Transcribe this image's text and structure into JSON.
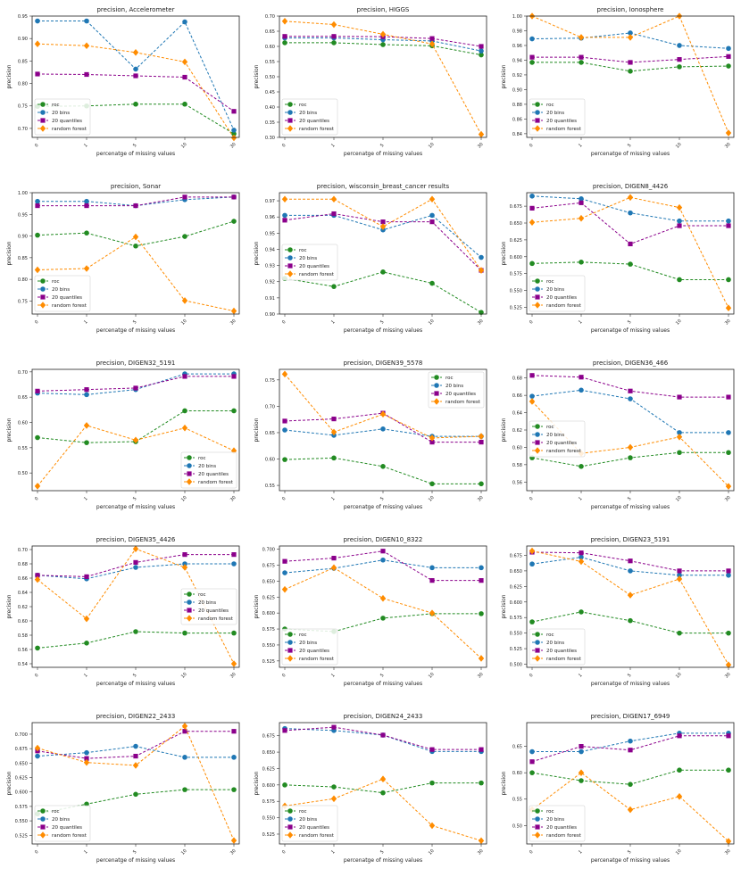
{
  "series_names": [
    "roc",
    "20 bins",
    "20 quantiles",
    "random forest"
  ],
  "colors": [
    "#228b22",
    "#1f77b4",
    "#8b008b",
    "#ff8c00"
  ],
  "markers": [
    "circle",
    "circle",
    "square",
    "diamond"
  ],
  "chart_data": [
    {
      "type": "line",
      "title": "precision, Accelerometer",
      "xlabel": "percenatge of missing values",
      "ylabel": "precision",
      "categories": [
        "0",
        "1",
        "5",
        "10",
        "30"
      ],
      "ylim": [
        0.68,
        0.95
      ],
      "yticks": [
        "0.70",
        "0.75",
        "0.80",
        "0.85",
        "0.90",
        "0.95"
      ],
      "legend": "lower-left",
      "series": [
        {
          "name": "roc",
          "values": [
            0.749,
            0.75,
            0.754,
            0.754,
            0.688
          ]
        },
        {
          "name": "20 bins",
          "values": [
            0.939,
            0.939,
            0.832,
            0.937,
            0.696
          ]
        },
        {
          "name": "20 quantiles",
          "values": [
            0.821,
            0.82,
            0.817,
            0.814,
            0.738
          ]
        },
        {
          "name": "random forest",
          "values": [
            0.888,
            0.884,
            0.869,
            0.848,
            0.679
          ]
        }
      ]
    },
    {
      "type": "line",
      "title": "precision, HIGGS",
      "xlabel": "percenatge of missing values",
      "ylabel": "precision",
      "categories": [
        "0",
        "1",
        "5",
        "10",
        "30"
      ],
      "ylim": [
        0.3,
        0.7
      ],
      "yticks": [
        "0.30",
        "0.35",
        "0.40",
        "0.45",
        "0.50",
        "0.55",
        "0.60",
        "0.65",
        "0.70"
      ],
      "legend": "lower-left",
      "series": [
        {
          "name": "roc",
          "values": [
            0.612,
            0.612,
            0.606,
            0.602,
            0.572
          ]
        },
        {
          "name": "20 bins",
          "values": [
            0.628,
            0.628,
            0.622,
            0.618,
            0.585
          ]
        },
        {
          "name": "20 quantiles",
          "values": [
            0.633,
            0.633,
            0.632,
            0.626,
            0.6
          ]
        },
        {
          "name": "random forest",
          "values": [
            0.683,
            0.672,
            0.64,
            0.608,
            0.31
          ]
        }
      ]
    },
    {
      "type": "line",
      "title": "precision, Ionosphere",
      "xlabel": "percenatge of missing values",
      "ylabel": "precision",
      "categories": [
        "0",
        "1",
        "5",
        "10",
        "30"
      ],
      "ylim": [
        0.835,
        1.0
      ],
      "yticks": [
        "0.84",
        "0.86",
        "0.88",
        "0.90",
        "0.92",
        "0.94",
        "0.96",
        "0.98",
        "1.00"
      ],
      "legend": "lower-left",
      "series": [
        {
          "name": "roc",
          "values": [
            0.937,
            0.937,
            0.925,
            0.931,
            0.932
          ]
        },
        {
          "name": "20 bins",
          "values": [
            0.969,
            0.97,
            0.977,
            0.96,
            0.956
          ]
        },
        {
          "name": "20 quantiles",
          "values": [
            0.944,
            0.944,
            0.937,
            0.941,
            0.945
          ]
        },
        {
          "name": "random forest",
          "values": [
            1.0,
            0.971,
            0.971,
            1.0,
            0.841
          ]
        }
      ]
    },
    {
      "type": "line",
      "title": "precision, Sonar",
      "xlabel": "percenatge of missing values",
      "ylabel": "precision",
      "categories": [
        "0",
        "1",
        "5",
        "10",
        "30"
      ],
      "ylim": [
        0.72,
        1.0
      ],
      "yticks": [
        "0.75",
        "0.80",
        "0.85",
        "0.90",
        "0.95",
        "1.00"
      ],
      "legend": "lower-left",
      "series": [
        {
          "name": "roc",
          "values": [
            0.902,
            0.907,
            0.877,
            0.899,
            0.934
          ]
        },
        {
          "name": "20 bins",
          "values": [
            0.98,
            0.98,
            0.97,
            0.984,
            0.99
          ]
        },
        {
          "name": "20 quantiles",
          "values": [
            0.97,
            0.97,
            0.97,
            0.99,
            0.99
          ]
        },
        {
          "name": "random forest",
          "values": [
            0.822,
            0.825,
            0.898,
            0.751,
            0.727
          ]
        }
      ]
    },
    {
      "type": "line",
      "title": "precision, wisconsin_breast_cancer results",
      "xlabel": "percenatge of missing values",
      "ylabel": "precision",
      "categories": [
        "0",
        "1",
        "5",
        "10",
        "30"
      ],
      "ylim": [
        0.9,
        0.975
      ],
      "yticks": [
        "0.90",
        "0.91",
        "0.92",
        "0.93",
        "0.94",
        "0.95",
        "0.96",
        "0.97"
      ],
      "legend": "center-left",
      "series": [
        {
          "name": "roc",
          "values": [
            0.922,
            0.917,
            0.926,
            0.919,
            0.901
          ]
        },
        {
          "name": "20 bins",
          "values": [
            0.961,
            0.961,
            0.952,
            0.961,
            0.935
          ]
        },
        {
          "name": "20 quantiles",
          "values": [
            0.958,
            0.962,
            0.957,
            0.957,
            0.927
          ]
        },
        {
          "name": "random forest",
          "values": [
            0.971,
            0.971,
            0.954,
            0.971,
            0.927
          ]
        }
      ]
    },
    {
      "type": "line",
      "title": "precision, DIGEN8_4426",
      "xlabel": "percenatge of missing values",
      "ylabel": "precision",
      "categories": [
        "0",
        "1",
        "5",
        "10",
        "30"
      ],
      "ylim": [
        0.515,
        0.695
      ],
      "yticks": [
        "0.525",
        "0.550",
        "0.575",
        "0.600",
        "0.625",
        "0.650",
        "0.675"
      ],
      "legend": "lower-left",
      "series": [
        {
          "name": "roc",
          "values": [
            0.59,
            0.592,
            0.589,
            0.566,
            0.566
          ]
        },
        {
          "name": "20 bins",
          "values": [
            0.69,
            0.686,
            0.665,
            0.653,
            0.653
          ]
        },
        {
          "name": "20 quantiles",
          "values": [
            0.672,
            0.68,
            0.619,
            0.646,
            0.646
          ]
        },
        {
          "name": "random forest",
          "values": [
            0.651,
            0.657,
            0.688,
            0.673,
            0.524
          ]
        }
      ]
    },
    {
      "type": "line",
      "title": "precision, DIGEN32_5191",
      "xlabel": "percenatge of missing values",
      "ylabel": "precision",
      "categories": [
        "0",
        "1",
        "5",
        "10",
        "30"
      ],
      "ylim": [
        0.465,
        0.705
      ],
      "yticks": [
        "0.50",
        "0.55",
        "0.60",
        "0.65",
        "0.70"
      ],
      "legend": "lower-right",
      "series": [
        {
          "name": "roc",
          "values": [
            0.57,
            0.56,
            0.562,
            0.623,
            0.623
          ]
        },
        {
          "name": "20 bins",
          "values": [
            0.658,
            0.655,
            0.665,
            0.696,
            0.696
          ]
        },
        {
          "name": "20 quantiles",
          "values": [
            0.662,
            0.665,
            0.668,
            0.691,
            0.691
          ]
        },
        {
          "name": "random forest",
          "values": [
            0.474,
            0.594,
            0.565,
            0.589,
            0.544
          ]
        }
      ]
    },
    {
      "type": "line",
      "title": "precision, DIGEN39_5578",
      "xlabel": "percenatge of missing values",
      "ylabel": "precision",
      "categories": [
        "0",
        "1",
        "5",
        "10",
        "30"
      ],
      "ylim": [
        0.54,
        0.77
      ],
      "yticks": [
        "0.55",
        "0.60",
        "0.65",
        "0.70",
        "0.75"
      ],
      "legend": "top-right",
      "series": [
        {
          "name": "roc",
          "values": [
            0.599,
            0.602,
            0.586,
            0.553,
            0.553
          ]
        },
        {
          "name": "20 bins",
          "values": [
            0.655,
            0.645,
            0.657,
            0.643,
            0.643
          ]
        },
        {
          "name": "20 quantiles",
          "values": [
            0.672,
            0.676,
            0.687,
            0.632,
            0.632
          ]
        },
        {
          "name": "random forest",
          "values": [
            0.761,
            0.651,
            0.685,
            0.64,
            0.643
          ]
        }
      ]
    },
    {
      "type": "line",
      "title": "precision, DIGEN36_466",
      "xlabel": "percenatge of missing values",
      "ylabel": "precision",
      "categories": [
        "0",
        "1",
        "5",
        "10",
        "30"
      ],
      "ylim": [
        0.55,
        0.69
      ],
      "yticks": [
        "0.56",
        "0.58",
        "0.60",
        "0.62",
        "0.64",
        "0.66",
        "0.68"
      ],
      "legend": "center-left",
      "series": [
        {
          "name": "roc",
          "values": [
            0.588,
            0.578,
            0.588,
            0.594,
            0.594
          ]
        },
        {
          "name": "20 bins",
          "values": [
            0.659,
            0.666,
            0.656,
            0.617,
            0.617
          ]
        },
        {
          "name": "20 quantiles",
          "values": [
            0.683,
            0.681,
            0.665,
            0.658,
            0.658
          ]
        },
        {
          "name": "random forest",
          "values": [
            0.653,
            0.593,
            0.6,
            0.612,
            0.555
          ]
        }
      ]
    },
    {
      "type": "line",
      "title": "precision, DIGEN35_4426",
      "xlabel": "percenatge of missing values",
      "ylabel": "precision",
      "categories": [
        "0",
        "1",
        "5",
        "10",
        "30"
      ],
      "ylim": [
        0.535,
        0.705
      ],
      "yticks": [
        "0.54",
        "0.56",
        "0.58",
        "0.60",
        "0.62",
        "0.64",
        "0.66",
        "0.68",
        "0.70"
      ],
      "legend": "center-right",
      "series": [
        {
          "name": "roc",
          "values": [
            0.562,
            0.569,
            0.585,
            0.583,
            0.583
          ]
        },
        {
          "name": "20 bins",
          "values": [
            0.664,
            0.659,
            0.675,
            0.68,
            0.68
          ]
        },
        {
          "name": "20 quantiles",
          "values": [
            0.664,
            0.662,
            0.682,
            0.693,
            0.693
          ]
        },
        {
          "name": "random forest",
          "values": [
            0.658,
            0.603,
            0.701,
            0.675,
            0.54
          ]
        }
      ]
    },
    {
      "type": "line",
      "title": "precision, DIGEN10_8322",
      "xlabel": "percenatge of missing values",
      "ylabel": "precision",
      "categories": [
        "0",
        "1",
        "5",
        "10",
        "30"
      ],
      "ylim": [
        0.515,
        0.705
      ],
      "yticks": [
        "0.525",
        "0.550",
        "0.575",
        "0.600",
        "0.625",
        "0.650",
        "0.675",
        "0.700"
      ],
      "legend": "lower-left",
      "series": [
        {
          "name": "roc",
          "values": [
            0.575,
            0.571,
            0.592,
            0.599,
            0.599
          ]
        },
        {
          "name": "20 bins",
          "values": [
            0.663,
            0.67,
            0.683,
            0.671,
            0.671
          ]
        },
        {
          "name": "20 quantiles",
          "values": [
            0.681,
            0.686,
            0.697,
            0.651,
            0.651
          ]
        },
        {
          "name": "random forest",
          "values": [
            0.637,
            0.671,
            0.623,
            0.6,
            0.529
          ]
        }
      ]
    },
    {
      "type": "line",
      "title": "precision, DIGEN23_5191",
      "xlabel": "percenatge of missing values",
      "ylabel": "precision",
      "categories": [
        "0",
        "1",
        "5",
        "10",
        "30"
      ],
      "ylim": [
        0.495,
        0.69
      ],
      "yticks": [
        "0.500",
        "0.525",
        "0.550",
        "0.575",
        "0.600",
        "0.625",
        "0.650",
        "0.675"
      ],
      "legend": "lower-left",
      "series": [
        {
          "name": "roc",
          "values": [
            0.568,
            0.584,
            0.57,
            0.55,
            0.55
          ]
        },
        {
          "name": "20 bins",
          "values": [
            0.661,
            0.672,
            0.65,
            0.643,
            0.643
          ]
        },
        {
          "name": "20 quantiles",
          "values": [
            0.68,
            0.679,
            0.666,
            0.65,
            0.65
          ]
        },
        {
          "name": "random forest",
          "values": [
            0.682,
            0.665,
            0.611,
            0.637,
            0.499
          ]
        }
      ]
    },
    {
      "type": "line",
      "title": "precision, DIGEN22_2433",
      "xlabel": "percenatge of missing values",
      "ylabel": "precision",
      "categories": [
        "0",
        "1",
        "5",
        "10",
        "30"
      ],
      "ylim": [
        0.51,
        0.72
      ],
      "yticks": [
        "0.525",
        "0.550",
        "0.575",
        "0.600",
        "0.625",
        "0.650",
        "0.675",
        "0.700"
      ],
      "legend": "lower-left",
      "series": [
        {
          "name": "roc",
          "values": [
            0.562,
            0.579,
            0.596,
            0.604,
            0.604
          ]
        },
        {
          "name": "20 bins",
          "values": [
            0.662,
            0.668,
            0.679,
            0.66,
            0.66
          ]
        },
        {
          "name": "20 quantiles",
          "values": [
            0.671,
            0.658,
            0.662,
            0.705,
            0.705
          ]
        },
        {
          "name": "random forest",
          "values": [
            0.676,
            0.651,
            0.646,
            0.714,
            0.516
          ]
        }
      ]
    },
    {
      "type": "line",
      "title": "precision, DIGEN24_2433",
      "xlabel": "percenatge of missing values",
      "ylabel": "precision",
      "categories": [
        "0",
        "1",
        "5",
        "10",
        "30"
      ],
      "ylim": [
        0.51,
        0.695
      ],
      "yticks": [
        "0.525",
        "0.550",
        "0.575",
        "0.600",
        "0.625",
        "0.650",
        "0.675"
      ],
      "legend": "lower-left",
      "series": [
        {
          "name": "roc",
          "values": [
            0.6,
            0.597,
            0.588,
            0.603,
            0.603
          ]
        },
        {
          "name": "20 bins",
          "values": [
            0.686,
            0.683,
            0.676,
            0.651,
            0.651
          ]
        },
        {
          "name": "20 quantiles",
          "values": [
            0.683,
            0.688,
            0.676,
            0.654,
            0.654
          ]
        },
        {
          "name": "random forest",
          "values": [
            0.568,
            0.579,
            0.609,
            0.538,
            0.515
          ]
        }
      ]
    },
    {
      "type": "line",
      "title": "precision, DIGEN17_6949",
      "xlabel": "percenatge of missing values",
      "ylabel": "precision",
      "categories": [
        "0",
        "1",
        "5",
        "10",
        "30"
      ],
      "ylim": [
        0.465,
        0.695
      ],
      "yticks": [
        "0.50",
        "0.55",
        "0.60",
        "0.65"
      ],
      "legend": "lower-left",
      "series": [
        {
          "name": "roc",
          "values": [
            0.6,
            0.585,
            0.578,
            0.605,
            0.605
          ]
        },
        {
          "name": "20 bins",
          "values": [
            0.64,
            0.64,
            0.66,
            0.675,
            0.675
          ]
        },
        {
          "name": "20 quantiles",
          "values": [
            0.621,
            0.65,
            0.643,
            0.67,
            0.67
          ]
        },
        {
          "name": "random forest",
          "values": [
            0.53,
            0.6,
            0.53,
            0.555,
            0.47
          ]
        }
      ]
    }
  ]
}
